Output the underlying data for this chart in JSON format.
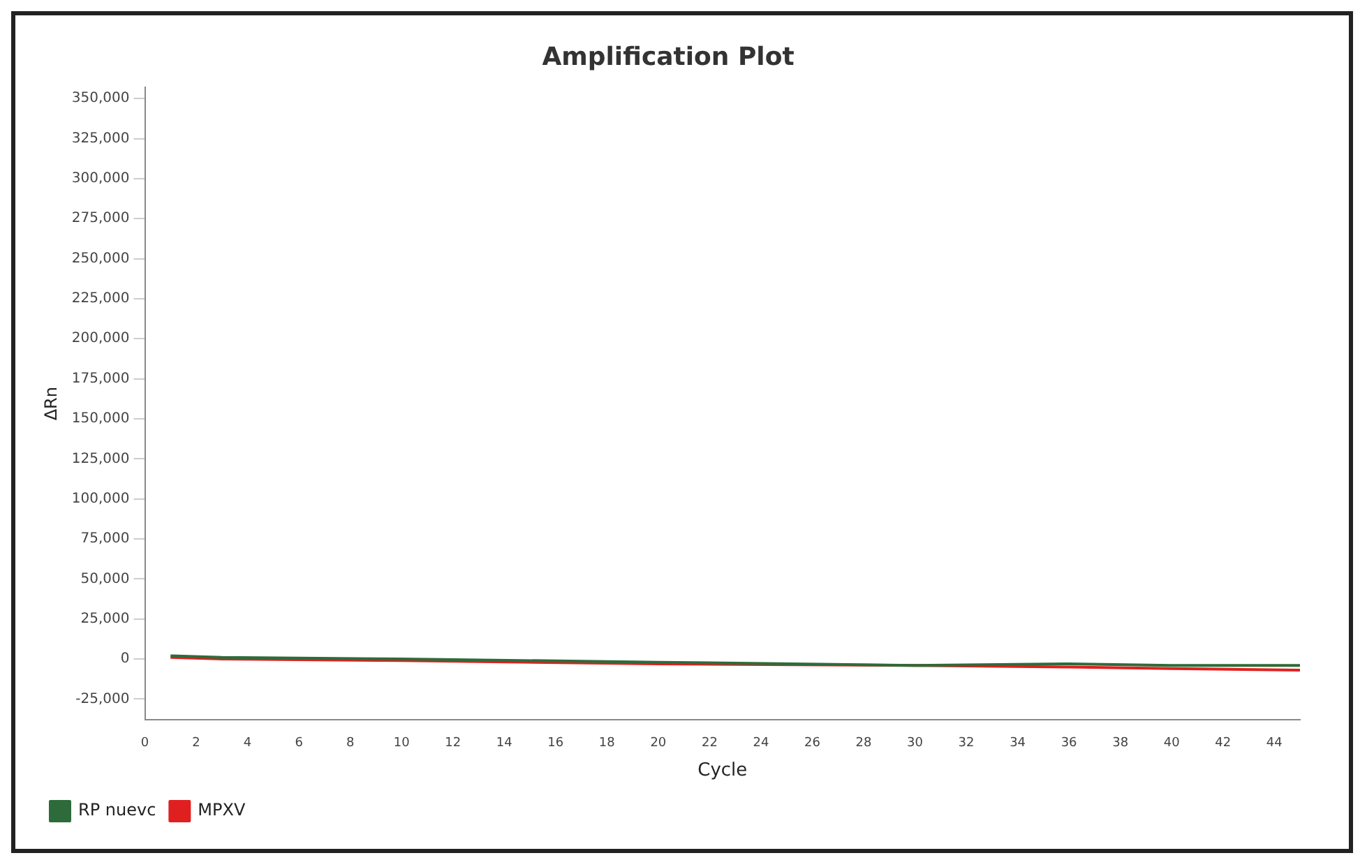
{
  "chart_data": {
    "type": "line",
    "title": "Amplification Plot",
    "xlabel": "Cycle",
    "ylabel": "ΔRn",
    "xlim": [
      0,
      45
    ],
    "xticks": [
      0,
      2,
      4,
      6,
      8,
      10,
      12,
      14,
      16,
      18,
      20,
      22,
      24,
      26,
      28,
      30,
      32,
      34,
      36,
      38,
      40,
      42,
      44
    ],
    "ylim": [
      -38000,
      357000
    ],
    "yticks": [
      {
        "value": -25000,
        "label": "-25,000"
      },
      0,
      {
        "value": 25000,
        "label": "25,000"
      },
      {
        "value": 50000,
        "label": "50,000"
      },
      {
        "value": 75000,
        "label": "75,000"
      },
      {
        "value": 100000,
        "label": "100,000"
      },
      {
        "value": 125000,
        "label": "125,000"
      },
      {
        "value": 150000,
        "label": "150,000"
      },
      {
        "value": 175000,
        "label": "175,000"
      },
      {
        "value": 200000,
        "label": "200,000"
      },
      {
        "value": 225000,
        "label": "225,000"
      },
      {
        "value": 250000,
        "label": "250,000"
      },
      {
        "value": 275000,
        "label": "275,000"
      },
      {
        "value": 300000,
        "label": "300,000"
      },
      {
        "value": 325000,
        "label": "325,000"
      },
      {
        "value": 350000,
        "label": "350,000"
      }
    ],
    "grid": false,
    "legend": "bottom left",
    "marker": "none",
    "line_style": "solid",
    "series": [
      {
        "name": "RP nuevc",
        "color": "#2e6b3a",
        "x": [
          1,
          3,
          10,
          20,
          30,
          36,
          40,
          45
        ],
        "values": [
          2000,
          1000,
          0,
          -2000,
          -4000,
          -3000,
          -4000,
          -4000
        ]
      },
      {
        "name": "MPXV",
        "color": "#e02020",
        "x": [
          1,
          3,
          10,
          20,
          30,
          36,
          40,
          45
        ],
        "values": [
          1000,
          0,
          -1000,
          -3000,
          -4000,
          -5000,
          -6000,
          -7000
        ]
      }
    ]
  }
}
